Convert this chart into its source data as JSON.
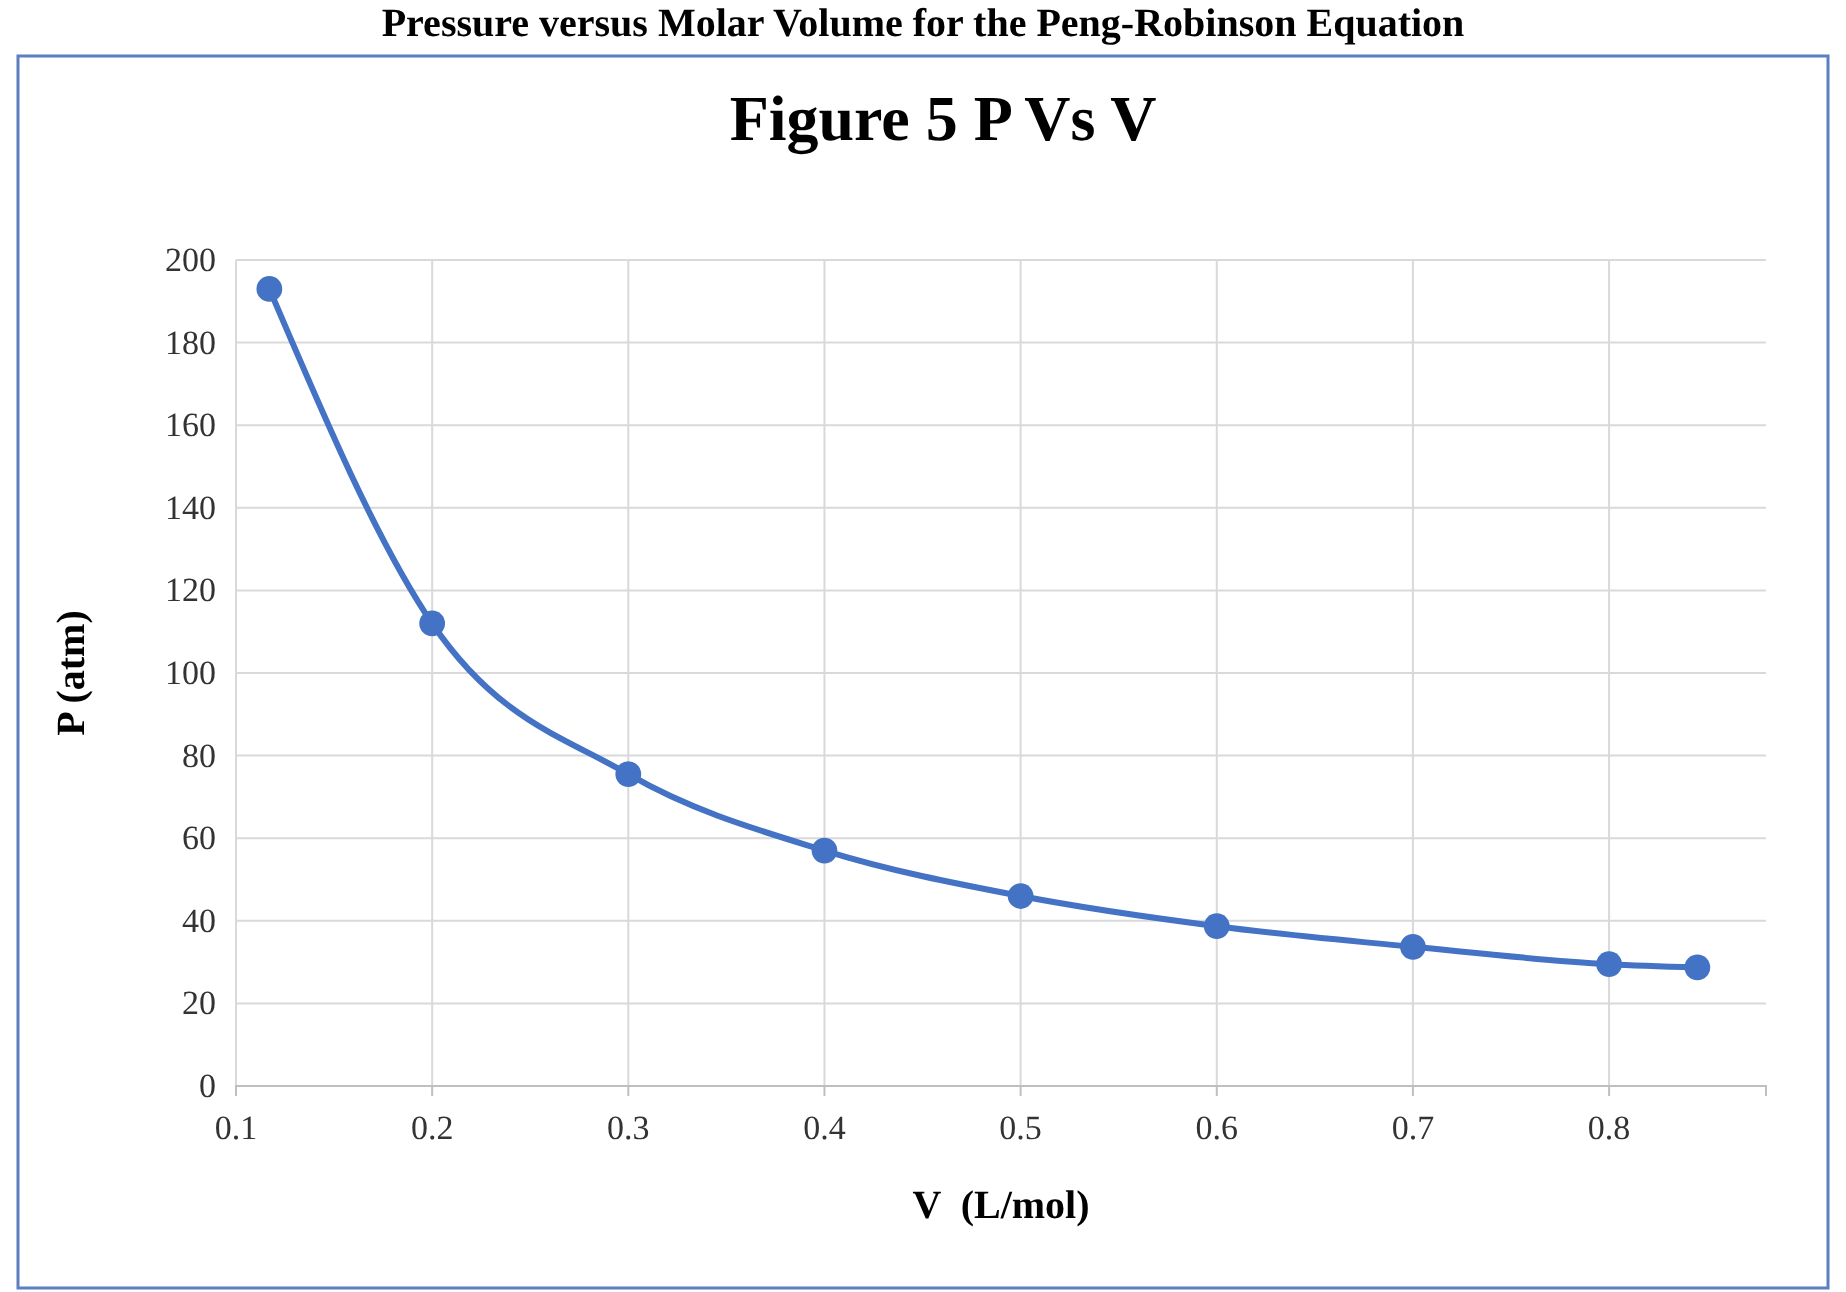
{
  "chart_data": {
    "type": "line",
    "title": "Figure 5 P Vs V",
    "xlabel": "V  (L/mol)",
    "ylabel": "P (atm)",
    "annotations": [
      "Pressure versus Molar Volume for the Peng-Robinson Equation"
    ],
    "x": [
      0.117,
      0.2,
      0.3,
      0.4,
      0.5,
      0.6,
      0.7,
      0.8,
      0.845
    ],
    "series": [
      {
        "color": "#4472c4",
        "values": [
          193,
          112,
          75.5,
          57,
          46,
          38.7,
          33.7,
          29.5,
          28.7
        ]
      }
    ],
    "xlim": [
      0.1,
      0.88
    ],
    "xticks": [
      0.1,
      0.2,
      0.3,
      0.4,
      0.5,
      0.6,
      0.7,
      0.8
    ],
    "ylim": [
      0,
      200
    ],
    "yticks": [
      0,
      20,
      40,
      60,
      80,
      100,
      120,
      140,
      160,
      180,
      200
    ],
    "grid": true,
    "marker": "circle",
    "line_style": "solid"
  }
}
